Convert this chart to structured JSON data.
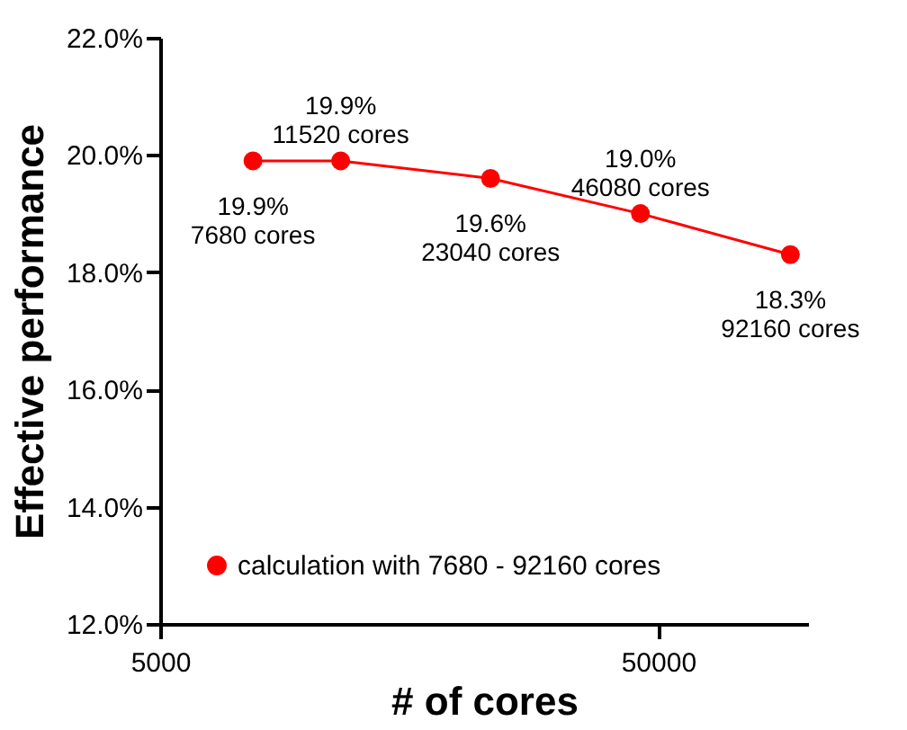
{
  "chart_data": {
    "type": "line",
    "xlabel": "# of cores",
    "ylabel": "Effective performance",
    "log": "x",
    "x": [
      7680,
      11520,
      23040,
      46080,
      92160
    ],
    "series": [
      {
        "name": "calculation with 7680 - 92160 cores",
        "color": "#ff0000",
        "values": [
          19.9,
          19.9,
          19.6,
          19.0,
          18.3
        ],
        "value_labels": [
          "19.9%\n7680 cores",
          "19.9%\n11520 cores",
          "19.6%\n23040 cores",
          "19.0%\n46080 cores",
          "18.3%\n92160 cores"
        ]
      }
    ],
    "xlim": [
      5000,
      100000
    ],
    "xticks": [
      5000,
      50000
    ],
    "ylim": [
      12,
      22
    ],
    "yticks": [
      {
        "value": 12,
        "label": "12.0%"
      },
      {
        "value": 14,
        "label": "14.0%"
      },
      {
        "value": 16,
        "label": "16.0%"
      },
      {
        "value": 18,
        "label": "18.0%"
      },
      {
        "value": 20,
        "label": "20.0%"
      },
      {
        "value": 22,
        "label": "22.0%"
      }
    ],
    "marker": "circle",
    "line_style": "solid",
    "grid": false,
    "legend": "bottom left"
  }
}
